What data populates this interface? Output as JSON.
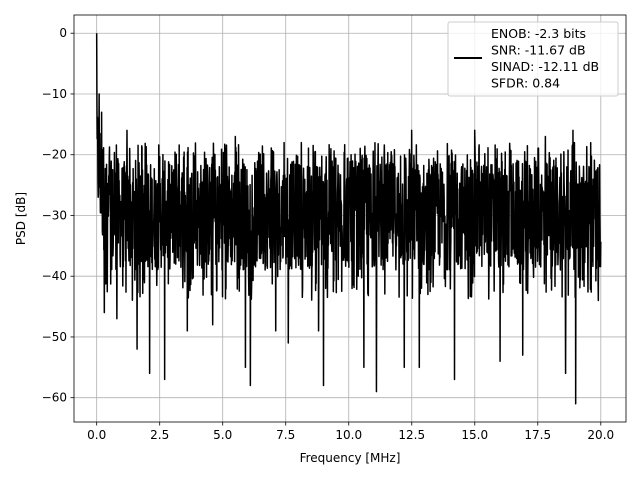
{
  "chart_data": {
    "type": "line",
    "title": "",
    "xlabel": "Frequency [MHz]",
    "ylabel": "PSD [dB]",
    "xlim": [
      -0.9,
      21.0
    ],
    "ylim": [
      -64.0,
      3.0
    ],
    "xticks": [
      0.0,
      2.5,
      5.0,
      7.5,
      10.0,
      12.5,
      15.0,
      17.5,
      20.0
    ],
    "xtick_labels": [
      "0.0",
      "2.5",
      "5.0",
      "7.5",
      "10.0",
      "12.5",
      "15.0",
      "17.5",
      "20.0"
    ],
    "yticks": [
      0,
      -10,
      -20,
      -30,
      -40,
      -50,
      -60
    ],
    "ytick_labels": [
      "0",
      "−10",
      "−20",
      "−30",
      "−40",
      "−50",
      "−60"
    ],
    "grid": true,
    "legend_position": "top-right",
    "legend_entries": [
      "ENOB: -2.3 bits",
      "SNR: -11.67 dB",
      "SINAD: -12.11 dB",
      "SFDR: 0.84"
    ],
    "series": [
      {
        "color": "#000000",
        "x_range": [
          0.0,
          20.0
        ],
        "points": 2048,
        "noise_floor_db": -30,
        "upper_envelope_db": -18,
        "lower_envelope_db": -40,
        "peak_db": 0,
        "deep_nulls_db": [
          [
            0.3,
            -46
          ],
          [
            0.8,
            -47
          ],
          [
            1.6,
            -52
          ],
          [
            2.1,
            -56
          ],
          [
            2.7,
            -57
          ],
          [
            3.6,
            -49
          ],
          [
            4.6,
            -48
          ],
          [
            5.9,
            -55
          ],
          [
            6.1,
            -58
          ],
          [
            7.1,
            -49
          ],
          [
            7.6,
            -51
          ],
          [
            8.8,
            -49
          ],
          [
            9.0,
            -58
          ],
          [
            10.6,
            -55
          ],
          [
            11.1,
            -59
          ],
          [
            12.2,
            -55
          ],
          [
            12.8,
            -55
          ],
          [
            14.2,
            -57
          ],
          [
            15.0,
            -55
          ],
          [
            16.0,
            -54
          ],
          [
            16.9,
            -53
          ],
          [
            18.6,
            -56
          ],
          [
            19.0,
            -61
          ],
          [
            19.9,
            -44
          ]
        ],
        "spikes_db": [
          [
            0.1,
            -10
          ],
          [
            0.2,
            -13
          ],
          [
            1.2,
            -16
          ],
          [
            5.5,
            -17
          ],
          [
            12.5,
            -16
          ],
          [
            15.0,
            -16
          ],
          [
            17.8,
            -17
          ],
          [
            18.9,
            -16
          ],
          [
            19.6,
            -18
          ]
        ]
      }
    ]
  }
}
